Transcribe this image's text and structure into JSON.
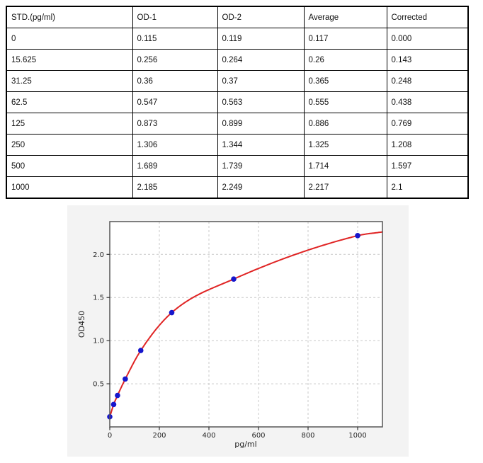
{
  "page": {
    "background": "#ffffff"
  },
  "table": {
    "headers": [
      "STD.(pg/ml)",
      "OD-1",
      "OD-2",
      "Average",
      "Corrected"
    ],
    "rows": [
      [
        "0",
        "0.115",
        "0.119",
        "0.117",
        "0.000"
      ],
      [
        "15.625",
        "0.256",
        "0.264",
        "0.26",
        "0.143"
      ],
      [
        "31.25",
        "0.36",
        "0.37",
        "0.365",
        "0.248"
      ],
      [
        "62.5",
        "0.547",
        "0.563",
        "0.555",
        "0.438"
      ],
      [
        "125",
        "0.873",
        "0.899",
        "0.886",
        "0.769"
      ],
      [
        "250",
        "1.306",
        "1.344",
        "1.325",
        "1.208"
      ],
      [
        "500",
        "1.689",
        "1.739",
        "1.714",
        "1.597"
      ],
      [
        "1000",
        "2.185",
        "2.249",
        "2.217",
        "2.1"
      ]
    ]
  },
  "chart_data": {
    "type": "scatter",
    "title": "",
    "xlabel": "pg/ml",
    "ylabel": "OD450",
    "x": [
      0,
      15.625,
      31.25,
      62.5,
      125,
      250,
      500,
      1000
    ],
    "y": [
      0.117,
      0.26,
      0.365,
      0.555,
      0.886,
      1.325,
      1.714,
      2.217
    ],
    "series_note": "blue points = Average OD450 of standards; red line = fitted standard curve",
    "xlim": [
      0,
      1100
    ],
    "ylim": [
      0,
      2.38
    ],
    "x_ticks": [
      0,
      200,
      400,
      600,
      800,
      1000
    ],
    "y_ticks": [
      0.5,
      1.0,
      1.5,
      2.0
    ],
    "grid": "dashed",
    "legend": "none",
    "fit_curve": {
      "end_x": 1100,
      "end_y": 2.26
    },
    "colors": {
      "point": "#1616cc",
      "curve": "#e02424",
      "panel_bg": "#f3f3f3",
      "plot_bg": "#ffffff",
      "plot_border": "#565656",
      "grid": "#c9c9c9",
      "tick_text": "#262626"
    }
  }
}
